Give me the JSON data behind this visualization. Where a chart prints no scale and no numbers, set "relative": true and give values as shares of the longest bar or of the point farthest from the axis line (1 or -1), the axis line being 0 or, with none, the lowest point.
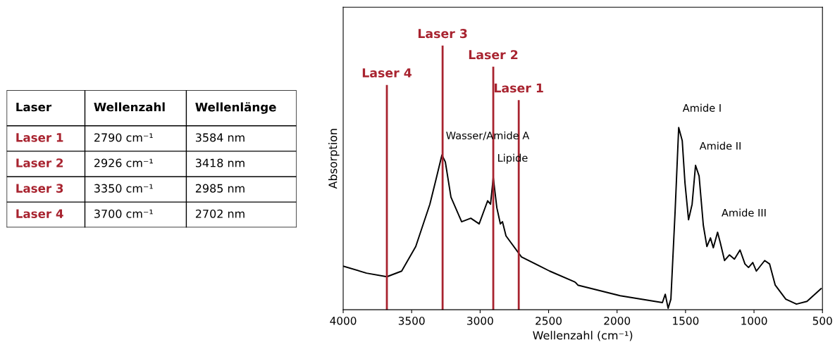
{
  "chart_data": [
    {
      "type": "other",
      "categories": [
        "Laser",
        "Wellenzahl",
        "Wellenlänge"
      ],
      "y_categories": [
        "Laser 1",
        "Laser 2",
        "Laser 3",
        "Laser 4"
      ],
      "color": "#a8232f",
      "cell_labels": [
        [
          "2790 cm⁻¹",
          "3584 nm"
        ],
        [
          "2926 cm⁻¹",
          "3418 nm"
        ],
        [
          "3350 cm⁻¹",
          "2985 nm"
        ],
        [
          "3700 cm⁻¹",
          "2702 nm"
        ]
      ]
    },
    {
      "type": "line",
      "relative": true,
      "xlabel": "Wellenzahl (cm⁻¹)",
      "ylabel": "Absorption",
      "tick_labels": "x",
      "xlim": [
        4000,
        500
      ],
      "xticks": [
        4000,
        3500,
        3000,
        2500,
        2000,
        1500,
        1000,
        500
      ],
      "series": [
        {
          "color": "#000000",
          "x": [
            4000,
            3830,
            3681,
            3573,
            3470,
            3367,
            3316,
            3279,
            3254,
            3213,
            3135,
            3068,
            3007,
            2945,
            2924,
            2904,
            2878,
            2852,
            2837,
            2811,
            2698,
            2492,
            2312,
            2300,
            2286,
            1977,
            1669,
            1648,
            1627,
            1607,
            1576,
            1550,
            1524,
            1504,
            1478,
            1452,
            1427,
            1401,
            1370,
            1344,
            1318,
            1297,
            1266,
            1246,
            1215,
            1179,
            1143,
            1102,
            1066,
            1040,
            1009,
            983,
            922,
            886,
            845,
            768,
            690,
            613,
            510
          ],
          "values": [
            0.239,
            0.201,
            0.181,
            0.212,
            0.347,
            0.579,
            0.734,
            0.849,
            0.811,
            0.618,
            0.483,
            0.502,
            0.471,
            0.598,
            0.579,
            0.726,
            0.56,
            0.471,
            0.483,
            0.405,
            0.29,
            0.212,
            0.154,
            0.147,
            0.135,
            0.077,
            0.039,
            0.085,
            0.008,
            0.058,
            0.541,
            1.0,
            0.927,
            0.695,
            0.494,
            0.579,
            0.792,
            0.734,
            0.463,
            0.347,
            0.394,
            0.34,
            0.425,
            0.367,
            0.27,
            0.301,
            0.278,
            0.328,
            0.251,
            0.232,
            0.259,
            0.212,
            0.27,
            0.251,
            0.135,
            0.058,
            0.031,
            0.046,
            0.116
          ]
        }
      ],
      "ref_lines": [
        {
          "axis": "x",
          "value": 3681,
          "label": "Laser 4",
          "color": "#a8232f"
        },
        {
          "axis": "x",
          "value": 3274,
          "label": "Laser 3",
          "color": "#a8232f"
        },
        {
          "axis": "x",
          "value": 2904,
          "label": "Laser 2",
          "color": "#a8232f"
        },
        {
          "axis": "x",
          "value": 2718,
          "label": "Laser 1",
          "color": "#a8232f"
        }
      ],
      "annotations": [
        {
          "text": "Wasser/Amide A",
          "x": 3279,
          "y": 0.849
        },
        {
          "text": "Lipide",
          "x": 2904,
          "y": 0.726
        },
        {
          "text": "Amide I",
          "x": 1550,
          "y": 1.0
        },
        {
          "text": "Amide II",
          "x": 1427,
          "y": 0.792
        },
        {
          "text": "Amide III",
          "x": 1266,
          "y": 0.425
        }
      ]
    }
  ]
}
